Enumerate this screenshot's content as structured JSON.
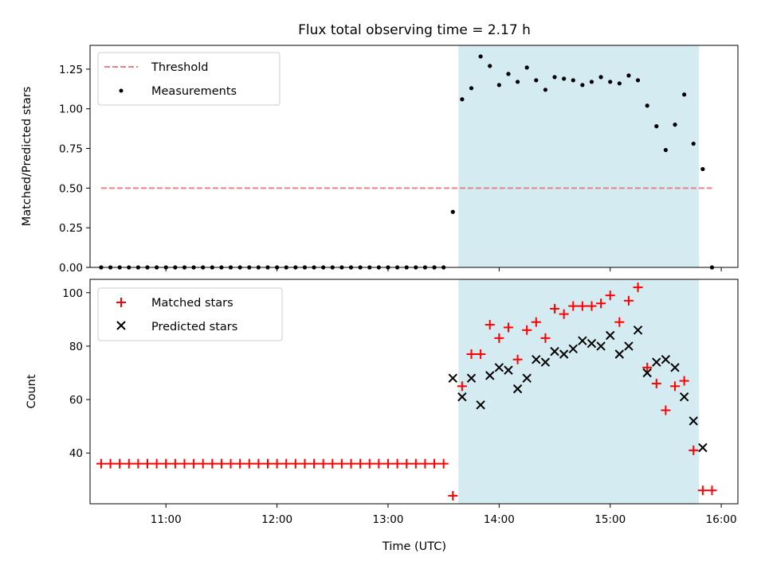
{
  "chart_data": [
    {
      "type": "scatter",
      "title": "Flux total observing time = 2.17 h",
      "xlabel": "",
      "ylabel": "Matched/Predicted stars",
      "xlim": [
        "10:19",
        "16:09"
      ],
      "ylim": [
        0,
        1.4
      ],
      "yticks": [
        "0.00",
        "0.25",
        "0.50",
        "0.75",
        "1.00",
        "1.25"
      ],
      "shaded_interval": [
        "13:38",
        "15:48"
      ],
      "shade_color": "#d4ebf1",
      "legend": {
        "placement": "top-left",
        "entries": [
          "Threshold",
          "Measurements"
        ]
      },
      "threshold": {
        "name": "Threshold",
        "value": 0.5,
        "x_range": [
          "10:25",
          "15:55"
        ],
        "color": "#f08080"
      },
      "series": [
        {
          "name": "Measurements",
          "color": "#000000",
          "marker": "dot",
          "points": [
            [
              "10:25",
              0
            ],
            [
              "10:30",
              0
            ],
            [
              "10:35",
              0
            ],
            [
              "10:40",
              0
            ],
            [
              "10:45",
              0
            ],
            [
              "10:50",
              0
            ],
            [
              "10:55",
              0
            ],
            [
              "11:00",
              0
            ],
            [
              "11:05",
              0
            ],
            [
              "11:10",
              0
            ],
            [
              "11:15",
              0
            ],
            [
              "11:20",
              0
            ],
            [
              "11:25",
              0
            ],
            [
              "11:30",
              0
            ],
            [
              "11:35",
              0
            ],
            [
              "11:40",
              0
            ],
            [
              "11:45",
              0
            ],
            [
              "11:50",
              0
            ],
            [
              "11:55",
              0
            ],
            [
              "12:00",
              0
            ],
            [
              "12:05",
              0
            ],
            [
              "12:10",
              0
            ],
            [
              "12:15",
              0
            ],
            [
              "12:20",
              0
            ],
            [
              "12:25",
              0
            ],
            [
              "12:30",
              0
            ],
            [
              "12:35",
              0
            ],
            [
              "12:40",
              0
            ],
            [
              "12:45",
              0
            ],
            [
              "12:50",
              0
            ],
            [
              "12:55",
              0
            ],
            [
              "13:00",
              0
            ],
            [
              "13:05",
              0
            ],
            [
              "13:10",
              0
            ],
            [
              "13:15",
              0
            ],
            [
              "13:20",
              0
            ],
            [
              "13:25",
              0
            ],
            [
              "13:30",
              0
            ],
            [
              "13:35",
              0.35
            ],
            [
              "13:40",
              1.06
            ],
            [
              "13:45",
              1.13
            ],
            [
              "13:50",
              1.33
            ],
            [
              "13:55",
              1.27
            ],
            [
              "14:00",
              1.15
            ],
            [
              "14:05",
              1.22
            ],
            [
              "14:10",
              1.17
            ],
            [
              "14:15",
              1.26
            ],
            [
              "14:20",
              1.18
            ],
            [
              "14:25",
              1.12
            ],
            [
              "14:30",
              1.2
            ],
            [
              "14:35",
              1.19
            ],
            [
              "14:40",
              1.18
            ],
            [
              "14:45",
              1.15
            ],
            [
              "14:50",
              1.17
            ],
            [
              "14:55",
              1.2
            ],
            [
              "15:00",
              1.17
            ],
            [
              "15:05",
              1.16
            ],
            [
              "15:10",
              1.21
            ],
            [
              "15:15",
              1.18
            ],
            [
              "15:20",
              1.02
            ],
            [
              "15:25",
              0.89
            ],
            [
              "15:30",
              0.74
            ],
            [
              "15:35",
              0.9
            ],
            [
              "15:40",
              1.09
            ],
            [
              "15:45",
              0.78
            ],
            [
              "15:50",
              0.62
            ],
            [
              "15:55",
              0
            ]
          ]
        }
      ]
    },
    {
      "type": "scatter",
      "title": "",
      "xlabel": "Time (UTC)",
      "ylabel": "Count",
      "xlim": [
        "10:19",
        "16:09"
      ],
      "ylim": [
        21,
        105
      ],
      "yticks": [
        "40",
        "60",
        "80",
        "100"
      ],
      "xticks": [
        "11:00",
        "12:00",
        "13:00",
        "14:00",
        "15:00",
        "16:00"
      ],
      "shaded_interval": [
        "13:38",
        "15:48"
      ],
      "shade_color": "#d4ebf1",
      "legend": {
        "placement": "top-left",
        "entries": [
          "Matched stars",
          "Predicted stars"
        ]
      },
      "series": [
        {
          "name": "Matched stars",
          "color": "#ff0000",
          "marker": "plus",
          "points": [
            [
              "10:25",
              36
            ],
            [
              "10:30",
              36
            ],
            [
              "10:35",
              36
            ],
            [
              "10:40",
              36
            ],
            [
              "10:45",
              36
            ],
            [
              "10:50",
              36
            ],
            [
              "10:55",
              36
            ],
            [
              "11:00",
              36
            ],
            [
              "11:05",
              36
            ],
            [
              "11:10",
              36
            ],
            [
              "11:15",
              36
            ],
            [
              "11:20",
              36
            ],
            [
              "11:25",
              36
            ],
            [
              "11:30",
              36
            ],
            [
              "11:35",
              36
            ],
            [
              "11:40",
              36
            ],
            [
              "11:45",
              36
            ],
            [
              "11:50",
              36
            ],
            [
              "11:55",
              36
            ],
            [
              "12:00",
              36
            ],
            [
              "12:05",
              36
            ],
            [
              "12:10",
              36
            ],
            [
              "12:15",
              36
            ],
            [
              "12:20",
              36
            ],
            [
              "12:25",
              36
            ],
            [
              "12:30",
              36
            ],
            [
              "12:35",
              36
            ],
            [
              "12:40",
              36
            ],
            [
              "12:45",
              36
            ],
            [
              "12:50",
              36
            ],
            [
              "12:55",
              36
            ],
            [
              "13:00",
              36
            ],
            [
              "13:05",
              36
            ],
            [
              "13:10",
              36
            ],
            [
              "13:15",
              36
            ],
            [
              "13:20",
              36
            ],
            [
              "13:25",
              36
            ],
            [
              "13:30",
              36
            ],
            [
              "13:35",
              24
            ],
            [
              "13:40",
              65
            ],
            [
              "13:45",
              77
            ],
            [
              "13:50",
              77
            ],
            [
              "13:55",
              88
            ],
            [
              "14:00",
              83
            ],
            [
              "14:05",
              87
            ],
            [
              "14:10",
              75
            ],
            [
              "14:15",
              86
            ],
            [
              "14:20",
              89
            ],
            [
              "14:25",
              83
            ],
            [
              "14:30",
              94
            ],
            [
              "14:35",
              92
            ],
            [
              "14:40",
              95
            ],
            [
              "14:45",
              95
            ],
            [
              "14:50",
              95
            ],
            [
              "14:55",
              96
            ],
            [
              "15:00",
              99
            ],
            [
              "15:05",
              89
            ],
            [
              "15:10",
              97
            ],
            [
              "15:15",
              102
            ],
            [
              "15:20",
              72
            ],
            [
              "15:25",
              66
            ],
            [
              "15:30",
              56
            ],
            [
              "15:35",
              65
            ],
            [
              "15:40",
              67
            ],
            [
              "15:45",
              41
            ],
            [
              "15:50",
              26
            ],
            [
              "15:55",
              26
            ]
          ]
        },
        {
          "name": "Predicted stars",
          "color": "#000000",
          "marker": "x",
          "points": [
            [
              "13:35",
              68
            ],
            [
              "13:40",
              61
            ],
            [
              "13:45",
              68
            ],
            [
              "13:50",
              58
            ],
            [
              "13:55",
              69
            ],
            [
              "14:00",
              72
            ],
            [
              "14:05",
              71
            ],
            [
              "14:10",
              64
            ],
            [
              "14:15",
              68
            ],
            [
              "14:20",
              75
            ],
            [
              "14:25",
              74
            ],
            [
              "14:30",
              78
            ],
            [
              "14:35",
              77
            ],
            [
              "14:40",
              79
            ],
            [
              "14:45",
              82
            ],
            [
              "14:50",
              81
            ],
            [
              "14:55",
              80
            ],
            [
              "15:00",
              84
            ],
            [
              "15:05",
              77
            ],
            [
              "15:10",
              80
            ],
            [
              "15:15",
              86
            ],
            [
              "15:20",
              70
            ],
            [
              "15:25",
              74
            ],
            [
              "15:30",
              75
            ],
            [
              "15:35",
              72
            ],
            [
              "15:40",
              61
            ],
            [
              "15:45",
              52
            ],
            [
              "15:50",
              42
            ]
          ]
        }
      ]
    }
  ]
}
